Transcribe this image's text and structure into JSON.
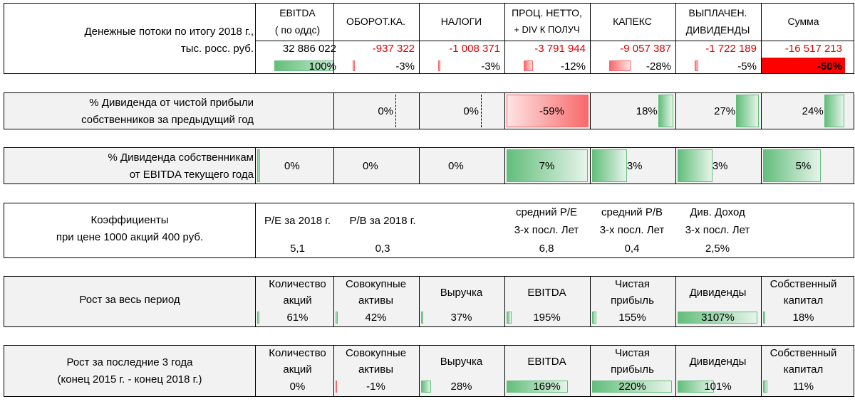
{
  "cashflow": {
    "title_line1": "Денежные потоки по итогу 2018 г.,",
    "title_line2": "тыс. росс. руб.",
    "columns": [
      {
        "h1": "EBITDA",
        "h2": "( по оддс)",
        "value": "32 886 022",
        "pct": "100%",
        "share": 1.0,
        "tone": "green"
      },
      {
        "h1": "ОБОРОТ.КА.",
        "h2": "",
        "value": "-937 322",
        "pct": "-3%",
        "share": 0.03,
        "tone": "red"
      },
      {
        "h1": "НАЛОГИ",
        "h2": "",
        "value": "-1 008 371",
        "pct": "-3%",
        "share": 0.03,
        "tone": "red"
      },
      {
        "h1": "ПРОЦ. НЕТТО,",
        "h2": "+ DIV К ПОЛУЧ",
        "value": "-3 791 944",
        "pct": "-12%",
        "share": 0.12,
        "tone": "red"
      },
      {
        "h1": "КАПЕКС",
        "h2": "",
        "value": "-9 057 387",
        "pct": "-28%",
        "share": 0.28,
        "tone": "red"
      },
      {
        "h1": "ВЫПЛАЧЕН.",
        "h2": "ДИВИДЕНДЫ",
        "value": "-1 722 189",
        "pct": "-5%",
        "share": 0.05,
        "tone": "red"
      },
      {
        "h1": "Сумма",
        "h2": "",
        "value": "-16 517 213",
        "pct": "-50%",
        "share": 0.5,
        "tone": "red"
      }
    ]
  },
  "div_profit": {
    "line1": "% Дивиденда от чистой прибыли",
    "line2": "собственников за предыдущий год",
    "values": [
      {
        "pct": "0%",
        "share": 0.0
      },
      {
        "pct": "0%",
        "share": 0.0
      },
      {
        "pct": "-59%",
        "share": -0.59
      },
      {
        "pct": "18%",
        "share": 0.18
      },
      {
        "pct": "27%",
        "share": 0.27
      },
      {
        "pct": "24%",
        "share": 0.24
      }
    ]
  },
  "div_ebitda": {
    "line1": "% Дивиденда собственникам",
    "line2": "от EBITDA текущего года",
    "values": [
      {
        "pct": "0%",
        "share": 0.0
      },
      {
        "pct": "0%",
        "share": 0.0
      },
      {
        "pct": "0%",
        "share": 0.0
      },
      {
        "pct": "7%",
        "share": 0.07
      },
      {
        "pct": "3%",
        "share": 0.03
      },
      {
        "pct": "3%",
        "share": 0.03
      },
      {
        "pct": "5%",
        "share": 0.05
      }
    ]
  },
  "ratios": {
    "line1": "Коэффициенты",
    "line2": "при цене 1000 акций 400 руб.",
    "items": [
      {
        "h1": "P/E за 2018 г.",
        "h2": "",
        "value": "5,1"
      },
      {
        "h1": "P/B за 2018 г.",
        "h2": "",
        "value": "0,3"
      },
      {
        "h1": "средний P/E",
        "h2": "3-х посл. Лет",
        "value": "6,8"
      },
      {
        "h1": "средний P/B",
        "h2": "3-х посл. Лет",
        "value": "0,4"
      },
      {
        "h1": "Див. Доход",
        "h2": "3-х посл. Лет",
        "value": "2,5%"
      }
    ]
  },
  "growth_all": {
    "line1": "Рост за весь период",
    "line2": "",
    "items": [
      {
        "h1": "Количество",
        "h2": "акций",
        "value": "61%",
        "share": 0.0196
      },
      {
        "h1": "Совокупные",
        "h2": "активы",
        "value": "42%",
        "share": 0.0135
      },
      {
        "h1": "Выручка",
        "h2": "",
        "value": "37%",
        "share": 0.0119
      },
      {
        "h1": "EBITDA",
        "h2": "",
        "value": "195%",
        "share": 0.0628
      },
      {
        "h1": "Чистая",
        "h2": "прибыль",
        "value": "155%",
        "share": 0.0499
      },
      {
        "h1": "Дивиденды",
        "h2": "",
        "value": "3107%",
        "share": 1.0
      },
      {
        "h1": "Собственный",
        "h2": "капитал",
        "value": "18%",
        "share": 0.0058
      }
    ]
  },
  "growth_3y": {
    "line1": "Рост за последние 3 года",
    "line2": "(конец 2015 г. - конец 2018 г.)",
    "items": [
      {
        "h1": "Количество",
        "h2": "акций",
        "value": "0%",
        "share": 0.0
      },
      {
        "h1": "Совокупные",
        "h2": "активы",
        "value": "-1%",
        "share": -0.0045
      },
      {
        "h1": "Выручка",
        "h2": "",
        "value": "28%",
        "share": 0.127
      },
      {
        "h1": "EBITDA",
        "h2": "",
        "value": "169%",
        "share": 0.768
      },
      {
        "h1": "Чистая",
        "h2": "прибыль",
        "value": "220%",
        "share": 1.0
      },
      {
        "h1": "Дивиденды",
        "h2": "",
        "value": "101%",
        "share": 0.459
      },
      {
        "h1": "Собственный",
        "h2": "капитал",
        "value": "11%",
        "share": 0.05
      }
    ]
  }
}
